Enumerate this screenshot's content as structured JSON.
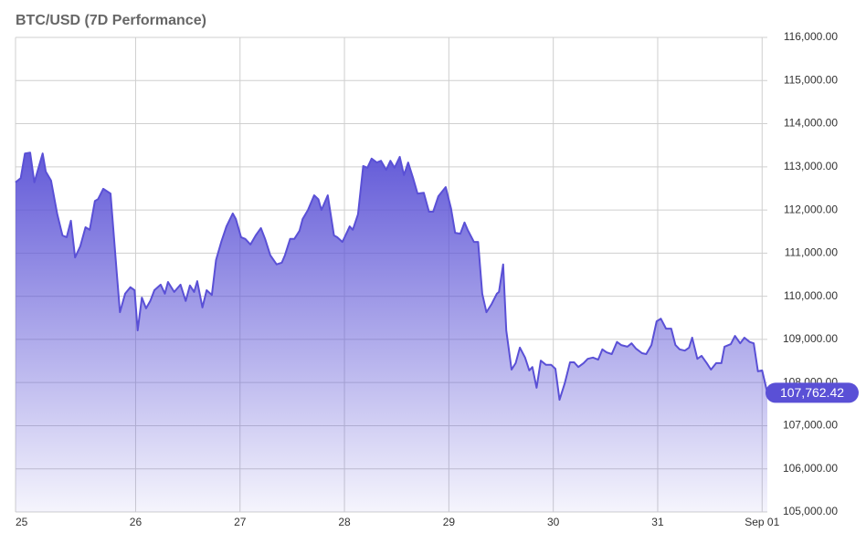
{
  "chart_data": {
    "type": "area",
    "title": "BTC/USD (7D Performance)",
    "color": "#5a50d6",
    "grid": true,
    "x": [
      24.85,
      24.9,
      24.94,
      24.99,
      25.03,
      25.11,
      25.14,
      25.19,
      25.25,
      25.3,
      25.34,
      25.38,
      25.42,
      25.47,
      25.52,
      25.56,
      25.61,
      25.64,
      25.69,
      25.76,
      25.82,
      25.85,
      25.9,
      25.95,
      25.99,
      26.02,
      26.06,
      26.1,
      26.14,
      26.18,
      26.24,
      26.28,
      26.31,
      26.37,
      26.43,
      26.48,
      26.52,
      26.56,
      26.59,
      26.64,
      26.68,
      26.73,
      26.77,
      26.82,
      26.87,
      26.93,
      26.96,
      27.01,
      27.05,
      27.1,
      27.15,
      27.2,
      27.24,
      27.29,
      27.35,
      27.4,
      27.43,
      27.48,
      27.52,
      27.57,
      27.6,
      27.65,
      27.71,
      27.75,
      27.78,
      27.84,
      27.9,
      27.93,
      27.98,
      28.01,
      28.05,
      28.08,
      28.13,
      28.18,
      28.22,
      28.26,
      28.31,
      28.35,
      28.4,
      28.44,
      28.48,
      28.53,
      28.57,
      28.61,
      28.66,
      28.7,
      28.76,
      28.81,
      28.85,
      28.9,
      28.97,
      29.02,
      29.06,
      29.11,
      29.15,
      29.18,
      29.24,
      29.28,
      29.32,
      29.36,
      29.41,
      29.46,
      29.48,
      29.52,
      29.55,
      29.6,
      29.64,
      29.68,
      29.73,
      29.77,
      29.8,
      29.84,
      29.88,
      29.93,
      29.98,
      30.02,
      30.06,
      30.11,
      30.16,
      30.2,
      30.24,
      30.29,
      30.33,
      30.38,
      30.43,
      30.47,
      30.51,
      30.56,
      30.61,
      30.65,
      30.71,
      30.75,
      30.79,
      30.85,
      30.89,
      30.94,
      30.99,
      31.03,
      31.08,
      31.13,
      31.17,
      31.21,
      31.26,
      31.3,
      31.33,
      31.38,
      31.42,
      31.47,
      31.51,
      31.56,
      31.61,
      31.64,
      31.7,
      31.74,
      31.79,
      31.83,
      31.88,
      31.92,
      31.96,
      32.0,
      32.05
    ],
    "values": [
      112640,
      112740,
      113310,
      113330,
      112640,
      113310,
      112890,
      112680,
      111900,
      111410,
      111370,
      111750,
      110900,
      111160,
      111600,
      111540,
      112210,
      112250,
      112490,
      112380,
      110520,
      109630,
      110060,
      110210,
      110140,
      109210,
      109970,
      109720,
      109890,
      110140,
      110270,
      110060,
      110330,
      110100,
      110270,
      109890,
      110250,
      110100,
      110350,
      109740,
      110140,
      110030,
      110840,
      111260,
      111620,
      111920,
      111790,
      111370,
      111330,
      111200,
      111410,
      111580,
      111330,
      110950,
      110740,
      110780,
      110950,
      111330,
      111330,
      111520,
      111790,
      112000,
      112340,
      112250,
      112000,
      112340,
      111410,
      111370,
      111260,
      111410,
      111620,
      111540,
      111900,
      113020,
      112980,
      113190,
      113100,
      113140,
      112930,
      113140,
      112980,
      113230,
      112810,
      113100,
      112720,
      112380,
      112400,
      111960,
      111960,
      112320,
      112530,
      112040,
      111470,
      111450,
      111710,
      111540,
      111260,
      111260,
      110060,
      109630,
      109820,
      110060,
      110100,
      110740,
      109210,
      108300,
      108450,
      108810,
      108580,
      108280,
      108360,
      107880,
      108510,
      108410,
      108410,
      108320,
      107600,
      107980,
      108470,
      108470,
      108360,
      108450,
      108550,
      108580,
      108530,
      108770,
      108700,
      108660,
      108940,
      108870,
      108830,
      108910,
      108790,
      108680,
      108660,
      108870,
      109420,
      109480,
      109250,
      109250,
      108870,
      108770,
      108740,
      108810,
      109040,
      108550,
      108620,
      108450,
      108300,
      108450,
      108450,
      108830,
      108890,
      109080,
      108910,
      109040,
      108940,
      108910,
      108260,
      108280,
      107762.42
    ],
    "last_value_label": "107,762.42",
    "xlim": [
      24.85,
      32.05
    ],
    "xticks": [
      {
        "value": 24.85,
        "label": "25"
      },
      26,
      27,
      28,
      29,
      30,
      31,
      {
        "value": 32,
        "label": "Sep 01"
      }
    ],
    "ylim": [
      105000,
      116000
    ],
    "yticks": [
      {
        "value": 105000,
        "label": "105,000.00"
      },
      {
        "value": 106000,
        "label": "106,000.00"
      },
      {
        "value": 107000,
        "label": "107,000.00"
      },
      {
        "value": 108000,
        "label": "108,000.00"
      },
      {
        "value": 109000,
        "label": "109,000.00"
      },
      {
        "value": 110000,
        "label": "110,000.00"
      },
      {
        "value": 111000,
        "label": "111,000.00"
      },
      {
        "value": 112000,
        "label": "112,000.00"
      },
      {
        "value": 113000,
        "label": "113,000.00"
      },
      {
        "value": 114000,
        "label": "114,000.00"
      },
      {
        "value": 115000,
        "label": "115,000.00"
      },
      {
        "value": 116000,
        "label": "116,000.00"
      }
    ]
  }
}
